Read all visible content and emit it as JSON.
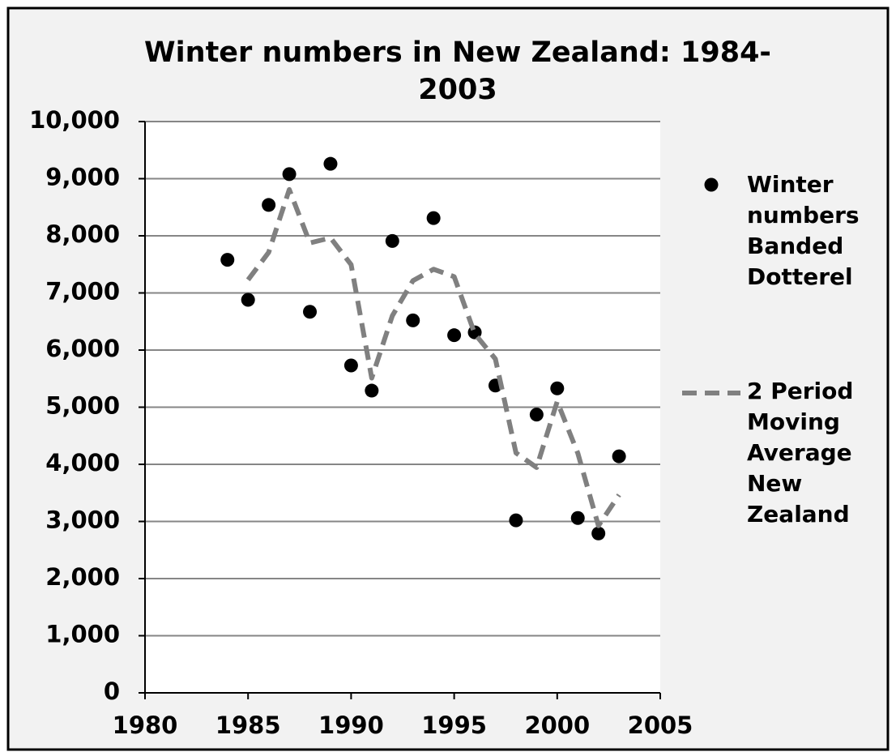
{
  "chart_data": {
    "type": "scatter-line",
    "title": "Winter numbers in New Zealand: 1984-2003",
    "x": [
      1984,
      1985,
      1986,
      1987,
      1988,
      1989,
      1990,
      1991,
      1992,
      1993,
      1994,
      1995,
      1996,
      1997,
      1998,
      1999,
      2000,
      2001,
      2002,
      2003
    ],
    "series": [
      {
        "name": "Winter numbers Banded Dotterel",
        "type": "scatter",
        "color": "#000000",
        "values": [
          7580,
          6880,
          8540,
          9080,
          6670,
          9260,
          5730,
          5290,
          7910,
          6520,
          8310,
          6260,
          6310,
          5380,
          3020,
          4870,
          5330,
          3060,
          2790,
          4140
        ]
      },
      {
        "name": "2 Period Moving Average New Zealand",
        "type": "line",
        "color": "#808080",
        "values": [
          null,
          7230,
          7710,
          8810,
          7875,
          7965,
          7495,
          5510,
          6600,
          7215,
          7415,
          7285,
          6285,
          5845,
          4200,
          3945,
          5100,
          4195,
          2925,
          3465
        ]
      }
    ],
    "xlim": [
      1980,
      2005
    ],
    "xticks": [
      1980,
      1985,
      1990,
      1995,
      2000,
      2005
    ],
    "ylim": [
      0,
      10000
    ],
    "yticks": [
      0,
      {
        "value": 1000,
        "label": "1,000"
      },
      {
        "value": 2000,
        "label": "2,000"
      },
      {
        "value": 3000,
        "label": "3,000"
      },
      {
        "value": 4000,
        "label": "4,000"
      },
      {
        "value": 5000,
        "label": "5,000"
      },
      {
        "value": 6000,
        "label": "6,000"
      },
      {
        "value": 7000,
        "label": "7,000"
      },
      {
        "value": 8000,
        "label": "8,000"
      },
      {
        "value": 9000,
        "label": "9,000"
      },
      {
        "value": 10000,
        "label": "10,000"
      }
    ],
    "grid": true
  }
}
